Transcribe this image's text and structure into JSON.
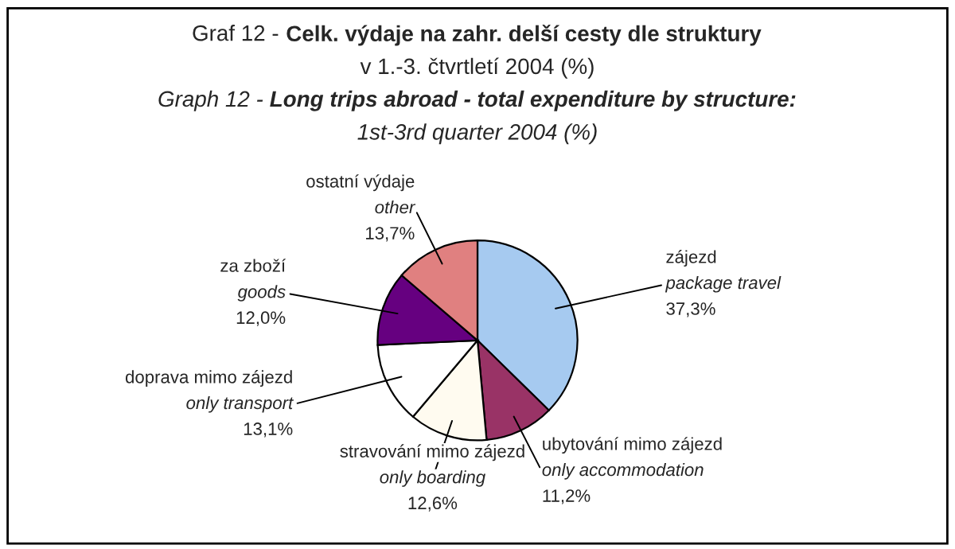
{
  "chart_data": {
    "type": "pie",
    "title": "Graf 12 - Celk. výdaje na zahr. delší cesty dle struktury\nv 1.-3. čtvrtletí 2004 (%)",
    "subtitle": "Graph 12 - Long trips abroad - total expenditure by structure:\n1st-3rd quarter 2004 (%)",
    "categories": [
      "zájezd\npackage travel",
      "ubytování mimo zájezd\nonly accommodation",
      "stravování mimo zájezd\nonly boarding",
      "doprava mimo zájezd\nonly transport",
      "za zboží\ngoods",
      "ostatní výdaje\nother"
    ],
    "values": [
      37.3,
      11.2,
      12.6,
      13.1,
      12.0,
      13.7
    ],
    "value_labels": [
      "37,3%",
      "11,2%",
      "12,6%",
      "13,1%",
      "12,0%",
      "13,7%"
    ],
    "colors": [
      "#a6caf0",
      "#993366",
      "#fffbf0",
      "#ffffff",
      "#660080",
      "#e08080"
    ],
    "legend": false
  }
}
